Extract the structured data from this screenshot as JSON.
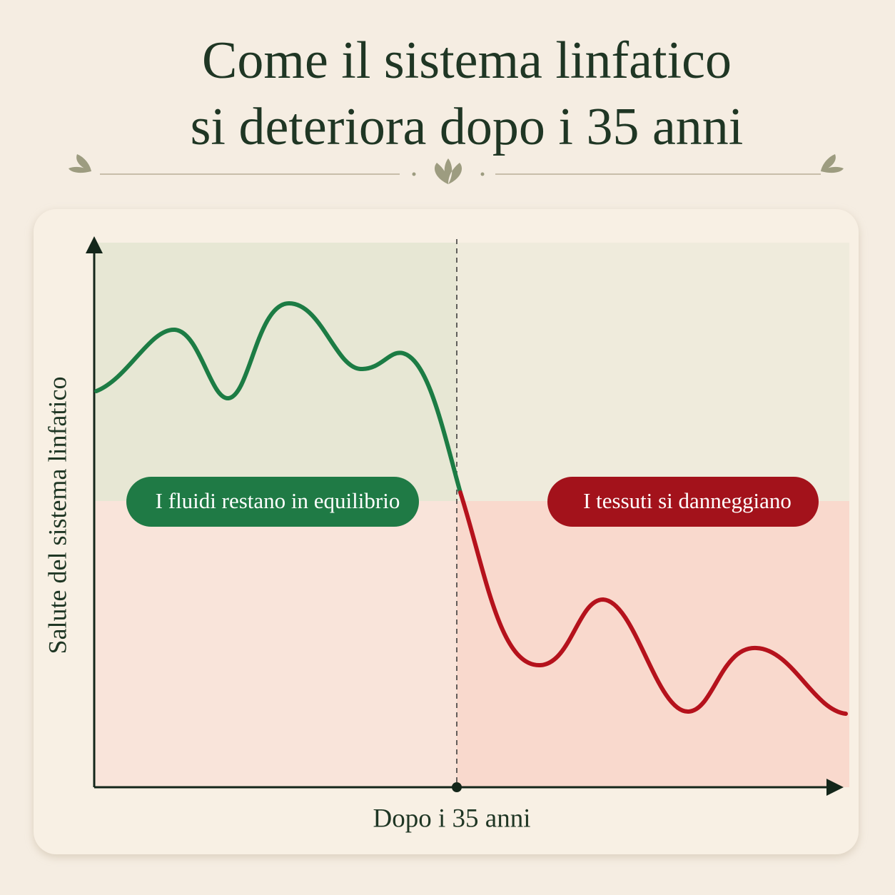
{
  "header": {
    "title_line1": "Come il sistema linfatico",
    "title_line2": "si deteriora dopo i 35 anni"
  },
  "diagram": {
    "y_axis_label": "Salute del sistema linfatico",
    "x_axis_label": "Dopo i 35 anni",
    "left_label": "I fluidi restano in equilibrio",
    "right_label": "I tessuti si danneggiano"
  }
}
